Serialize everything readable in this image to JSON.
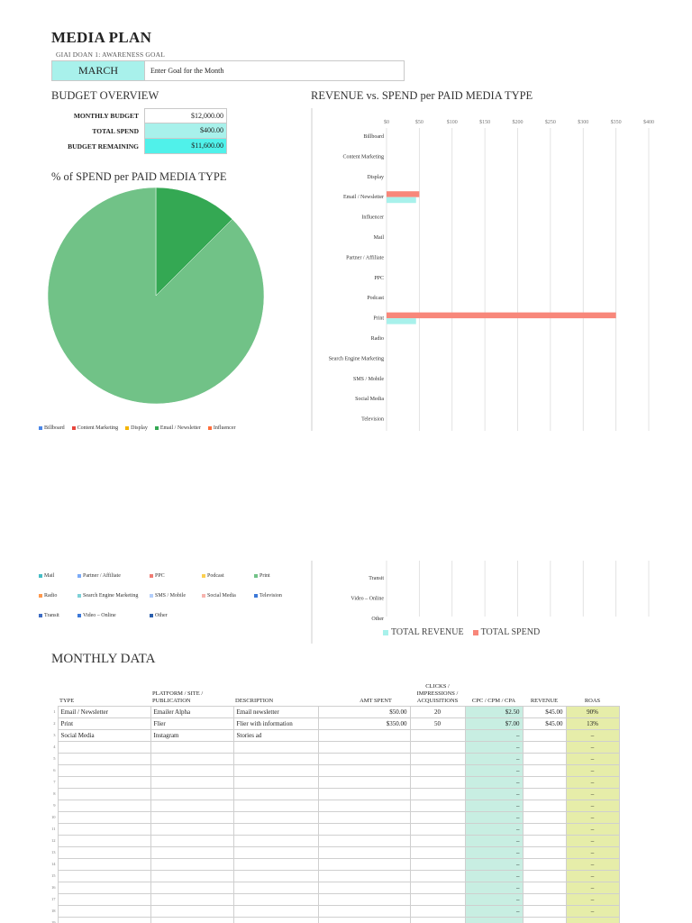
{
  "header": {
    "title": "MEDIA PLAN",
    "phase_label": "GIAI DOAN 1: AWARENESS   GOAL",
    "month": "MARCH",
    "goal_placeholder": "Enter Goal for the Month"
  },
  "budget": {
    "heading": "BUDGET OVERVIEW",
    "rows": [
      {
        "label": "MONTHLY BUDGET",
        "value": "$12,000.00"
      },
      {
        "label": "TOTAL SPEND",
        "value": "$400.00"
      },
      {
        "label": "BUDGET REMAINING",
        "value": "$11,600.00"
      }
    ],
    "colors": {
      "spend": "#a8f1eb",
      "remaining": "#50f1ea"
    }
  },
  "pie": {
    "heading": "% of SPEND per PAID MEDIA TYPE",
    "legend_top": [
      {
        "name": "Billboard",
        "color": "#4a86e8"
      },
      {
        "name": "Content Marketing",
        "color": "#e8453c"
      },
      {
        "name": "Display",
        "color": "#f4b400"
      },
      {
        "name": "Email / Newsletter",
        "color": "#34a853"
      },
      {
        "name": "Influencer",
        "color": "#ff6d3a"
      }
    ],
    "legend_bottom": [
      [
        {
          "name": "Mail",
          "color": "#46bdc6"
        },
        {
          "name": "Partner / Affiliate",
          "color": "#7baaf7"
        },
        {
          "name": "PPC",
          "color": "#f07b72"
        },
        {
          "name": "Podcast",
          "color": "#fcd04f"
        },
        {
          "name": "Print",
          "color": "#71c287"
        }
      ],
      [
        {
          "name": "Radio",
          "color": "#ff994d"
        },
        {
          "name": "Search Engine Marketing",
          "color": "#7ed1d7"
        },
        {
          "name": "SMS / Mobile",
          "color": "#b3cefb"
        },
        {
          "name": "Social Media",
          "color": "#f7b4ae"
        },
        {
          "name": "Television",
          "color": "#3c78d8"
        }
      ],
      [
        {
          "name": "Transit",
          "color": "#3d6dc4"
        },
        {
          "name": "Video – Online",
          "color": "#3c78d8"
        },
        {
          "name": "Other",
          "color": "#2b5fad"
        }
      ]
    ]
  },
  "bar": {
    "heading": "REVENUE vs. SPEND per PAID MEDIA TYPE",
    "legend": [
      {
        "name": "TOTAL REVENUE",
        "color": "#a8f1eb"
      },
      {
        "name": "TOTAL SPEND",
        "color": "#f8877a"
      }
    ]
  },
  "chart_data": [
    {
      "type": "pie",
      "title": "% of SPEND per PAID MEDIA TYPE",
      "slices": [
        {
          "name": "Email / Newsletter",
          "value": 50,
          "color": "#34a853"
        },
        {
          "name": "Print",
          "value": 350,
          "color": "#71c287"
        }
      ],
      "legend": "bottom"
    },
    {
      "type": "bar",
      "orientation": "horizontal",
      "title": "REVENUE vs. SPEND per PAID MEDIA TYPE",
      "x_ticks": [
        "$0",
        "$50",
        "$100",
        "$150",
        "$200",
        "$250",
        "$300",
        "$350",
        "$400"
      ],
      "xlim": [
        0,
        400
      ],
      "grid": true,
      "categories": [
        "Billboard",
        "Content Marketing",
        "Display",
        "Email / Newsletter",
        "Influencer",
        "Mail",
        "Partner / Affiliate",
        "PPC",
        "Podcast",
        "Print",
        "Radio",
        "Search Engine Marketing",
        "SMS / Mobile",
        "Social Media",
        "Television",
        "Transit",
        "Video – Online",
        "Other"
      ],
      "series": [
        {
          "name": "TOTAL SPEND",
          "color": "#f8877a",
          "values": [
            0,
            0,
            0,
            50,
            0,
            0,
            0,
            0,
            0,
            350,
            0,
            0,
            0,
            0,
            0,
            0,
            0,
            0
          ]
        },
        {
          "name": "TOTAL REVENUE",
          "color": "#a8f1eb",
          "values": [
            0,
            0,
            0,
            45,
            0,
            0,
            0,
            0,
            0,
            45,
            0,
            0,
            0,
            0,
            0,
            0,
            0,
            0
          ]
        }
      ],
      "legend": "bottom"
    }
  ],
  "monthly": {
    "heading": "MONTHLY DATA",
    "columns": [
      "TYPE",
      "PLATFORM / SITE / PUBLICATION",
      "DESCRIPTION",
      "AMT SPENT",
      "CLICKS / IMPRESSIONS / ACQUISITIONS",
      "CPC / CPM / CPA",
      "REVENUE",
      "ROAS"
    ],
    "rows": [
      {
        "n": "1",
        "type": "Email / Newsletter",
        "platform": "Emailer Alpha",
        "desc": "Email newsletter",
        "amt": "$50.00",
        "clicks": "20",
        "cpc": "$2.50",
        "rev": "$45.00",
        "roas": "90%"
      },
      {
        "n": "2",
        "type": "Print",
        "platform": "Flier",
        "desc": "Flier with information",
        "amt": "$350.00",
        "clicks": "50",
        "cpc": "$7.00",
        "rev": "$45.00",
        "roas": "13%"
      },
      {
        "n": "3",
        "type": "Social Media",
        "platform": "Instagram",
        "desc": "Stories ad",
        "amt": "",
        "clicks": "",
        "cpc": "–",
        "rev": "",
        "roas": "–"
      },
      {
        "n": "4",
        "type": "",
        "platform": "",
        "desc": "",
        "amt": "",
        "clicks": "",
        "cpc": "–",
        "rev": "",
        "roas": "–"
      },
      {
        "n": "5",
        "type": "",
        "platform": "",
        "desc": "",
        "amt": "",
        "clicks": "",
        "cpc": "–",
        "rev": "",
        "roas": "–"
      },
      {
        "n": "6",
        "type": "",
        "platform": "",
        "desc": "",
        "amt": "",
        "clicks": "",
        "cpc": "–",
        "rev": "",
        "roas": "–"
      },
      {
        "n": "7",
        "type": "",
        "platform": "",
        "desc": "",
        "amt": "",
        "clicks": "",
        "cpc": "–",
        "rev": "",
        "roas": "–"
      },
      {
        "n": "8",
        "type": "",
        "platform": "",
        "desc": "",
        "amt": "",
        "clicks": "",
        "cpc": "–",
        "rev": "",
        "roas": "–"
      },
      {
        "n": "9",
        "type": "",
        "platform": "",
        "desc": "",
        "amt": "",
        "clicks": "",
        "cpc": "–",
        "rev": "",
        "roas": "–"
      },
      {
        "n": "10",
        "type": "",
        "platform": "",
        "desc": "",
        "amt": "",
        "clicks": "",
        "cpc": "–",
        "rev": "",
        "roas": "–"
      },
      {
        "n": "11",
        "type": "",
        "platform": "",
        "desc": "",
        "amt": "",
        "clicks": "",
        "cpc": "–",
        "rev": "",
        "roas": "–"
      },
      {
        "n": "12",
        "type": "",
        "platform": "",
        "desc": "",
        "amt": "",
        "clicks": "",
        "cpc": "–",
        "rev": "",
        "roas": "–"
      },
      {
        "n": "13",
        "type": "",
        "platform": "",
        "desc": "",
        "amt": "",
        "clicks": "",
        "cpc": "–",
        "rev": "",
        "roas": "–"
      },
      {
        "n": "14",
        "type": "",
        "platform": "",
        "desc": "",
        "amt": "",
        "clicks": "",
        "cpc": "–",
        "rev": "",
        "roas": "–"
      },
      {
        "n": "15",
        "type": "",
        "platform": "",
        "desc": "",
        "amt": "",
        "clicks": "",
        "cpc": "–",
        "rev": "",
        "roas": "–"
      },
      {
        "n": "16",
        "type": "",
        "platform": "",
        "desc": "",
        "amt": "",
        "clicks": "",
        "cpc": "–",
        "rev": "",
        "roas": "–"
      },
      {
        "n": "17",
        "type": "",
        "platform": "",
        "desc": "",
        "amt": "",
        "clicks": "",
        "cpc": "–",
        "rev": "",
        "roas": "–"
      },
      {
        "n": "18",
        "type": "",
        "platform": "",
        "desc": "",
        "amt": "",
        "clicks": "",
        "cpc": "–",
        "rev": "",
        "roas": "–"
      },
      {
        "n": "19",
        "type": "",
        "platform": "",
        "desc": "",
        "amt": "",
        "clicks": "",
        "cpc": "–",
        "rev": "",
        "roas": "–"
      }
    ],
    "colors": {
      "cpc": "#c8eee2",
      "roas": "#e6eda9"
    }
  }
}
